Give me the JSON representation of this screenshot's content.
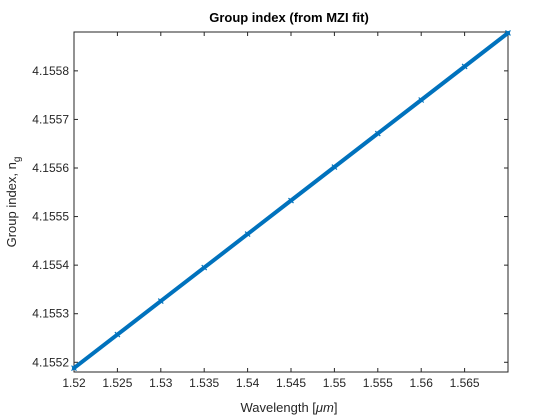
{
  "chart_data": {
    "type": "line",
    "title": "Group index (from MZI fit)",
    "xlabel": {
      "prefix": "Wavelength [",
      "unit": "μm",
      "suffix": "]"
    },
    "ylabel": {
      "main": "Group index, n",
      "subscript": "g"
    },
    "xlim": [
      1.52,
      1.57
    ],
    "ylim": [
      4.15518,
      4.15588
    ],
    "xticks": [
      1.52,
      1.525,
      1.53,
      1.535,
      1.54,
      1.545,
      1.55,
      1.555,
      1.56,
      1.565
    ],
    "xtick_labels": [
      "1.52",
      "1.525",
      "1.53",
      "1.535",
      "1.54",
      "1.545",
      "1.55",
      "1.555",
      "1.56",
      "1.565"
    ],
    "yticks": [
      4.1552,
      4.1553,
      4.1554,
      4.1555,
      4.1556,
      4.1557,
      4.1558
    ],
    "ytick_labels": [
      "4.1552",
      "4.1553",
      "4.1554",
      "4.1555",
      "4.1556",
      "4.1557",
      "4.1558"
    ],
    "grid": false,
    "series": [
      {
        "x": [
          1.52,
          1.525,
          1.53,
          1.535,
          1.54,
          1.545,
          1.55,
          1.555,
          1.56,
          1.565,
          1.57
        ],
        "values": [
          4.155188,
          4.155257,
          4.155326,
          4.155395,
          4.155464,
          4.155533,
          4.155602,
          4.155671,
          4.15574,
          4.155809,
          4.155878
        ],
        "color": "#0072BD",
        "marker": "x"
      }
    ]
  }
}
